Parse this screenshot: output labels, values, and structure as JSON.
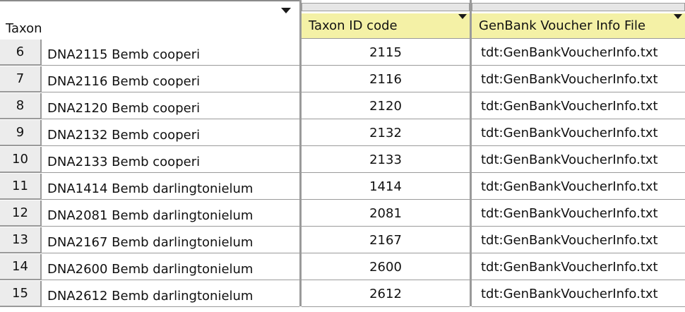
{
  "header": {
    "taxon_label": "Taxon",
    "columns": [
      {
        "label": "Taxon ID code"
      },
      {
        "label": "GenBank Voucher Info File"
      }
    ]
  },
  "rows": [
    {
      "num": "6",
      "name": "DNA2115 Bemb cooperi",
      "id": "2115",
      "voucher": "tdt:GenBankVoucherInfo.txt"
    },
    {
      "num": "7",
      "name": "DNA2116 Bemb cooperi",
      "id": "2116",
      "voucher": "tdt:GenBankVoucherInfo.txt"
    },
    {
      "num": "8",
      "name": "DNA2120 Bemb cooperi",
      "id": "2120",
      "voucher": "tdt:GenBankVoucherInfo.txt"
    },
    {
      "num": "9",
      "name": "DNA2132 Bemb cooperi",
      "id": "2132",
      "voucher": "tdt:GenBankVoucherInfo.txt"
    },
    {
      "num": "10",
      "name": "DNA2133 Bemb cooperi",
      "id": "2133",
      "voucher": "tdt:GenBankVoucherInfo.txt"
    },
    {
      "num": "11",
      "name": "DNA1414 Bemb darlingtonielum",
      "id": "1414",
      "voucher": "tdt:GenBankVoucherInfo.txt"
    },
    {
      "num": "12",
      "name": "DNA2081 Bemb darlingtonielum",
      "id": "2081",
      "voucher": "tdt:GenBankVoucherInfo.txt"
    },
    {
      "num": "13",
      "name": "DNA2167 Bemb darlingtonielum",
      "id": "2167",
      "voucher": "tdt:GenBankVoucherInfo.txt"
    },
    {
      "num": "14",
      "name": "DNA2600 Bemb darlingtonielum",
      "id": "2600",
      "voucher": "tdt:GenBankVoucherInfo.txt"
    },
    {
      "num": "15",
      "name": "DNA2612 Bemb darlingtonielum",
      "id": "2612",
      "voucher": "tdt:GenBankVoucherInfo.txt"
    }
  ],
  "colors": {
    "header_highlight": "#f4f1a6",
    "row_number_bg": "#ececec",
    "grid_line": "#9a9a9a"
  },
  "icons": [
    "dropdown-triangle-icon"
  ]
}
